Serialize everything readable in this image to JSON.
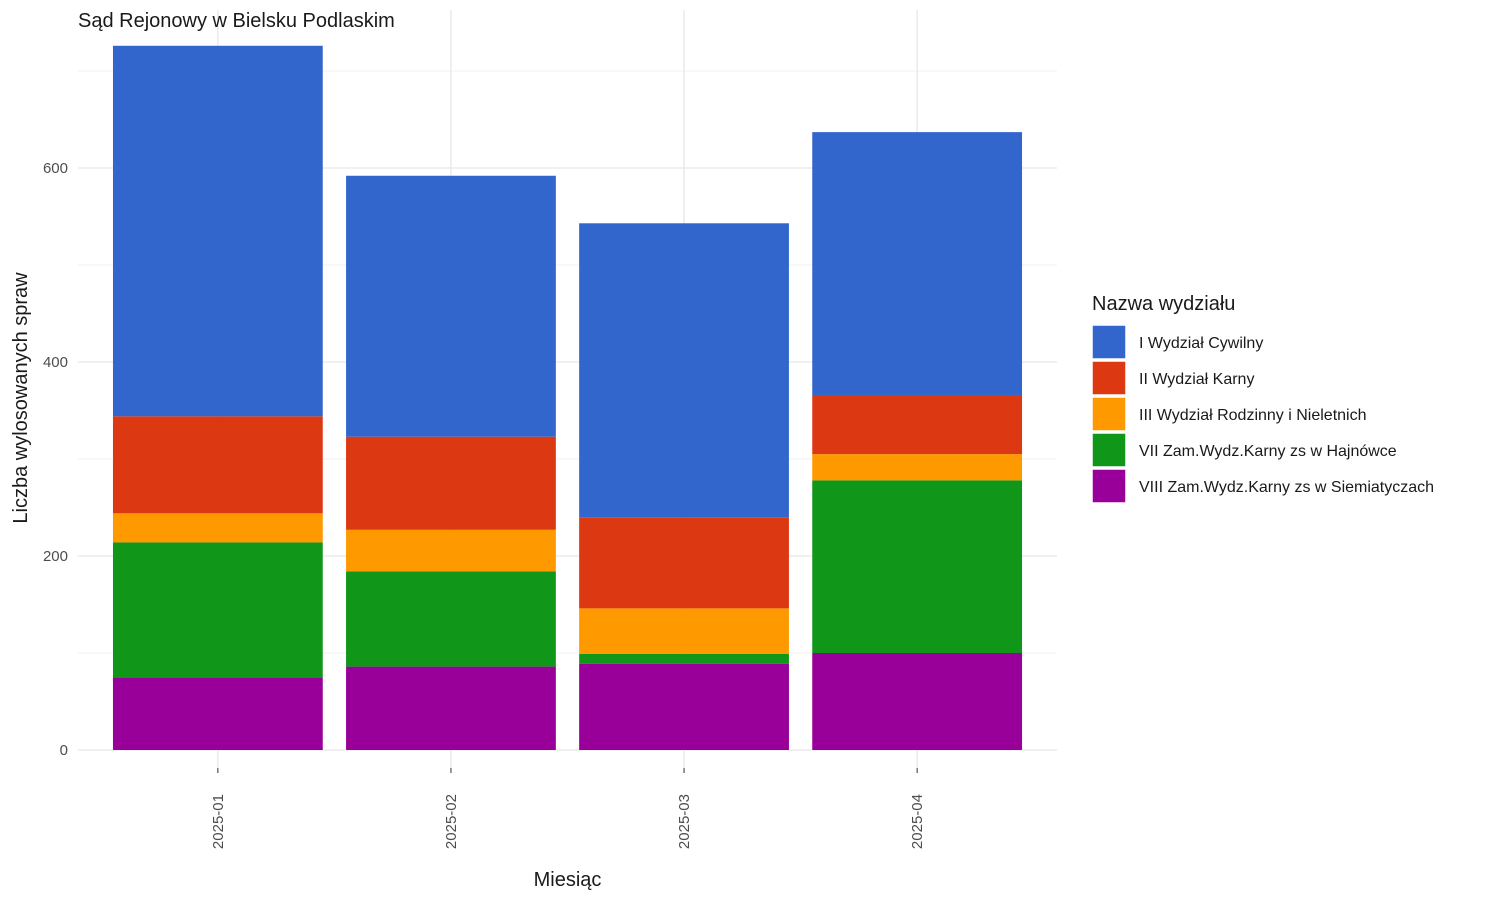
{
  "chart_data": {
    "type": "bar",
    "stacked": true,
    "title": "Sąd Rejonowy w Bielsku Podlaskim",
    "xlabel": "Miesiąc",
    "ylabel": "Liczba wylosowanych spraw",
    "categories": [
      "2025-01",
      "2025-02",
      "2025-03",
      "2025-04"
    ],
    "ylim": [
      0,
      730
    ],
    "yticks": [
      0,
      200,
      400,
      600
    ],
    "grid": true,
    "legend": {
      "title": "Nazwa wydziału",
      "position": "right"
    },
    "series": [
      {
        "name": "VIII Zam.Wydz.Karny zs w Siemiatyczach",
        "color": "#990099",
        "values": [
          75,
          86,
          89,
          100
        ]
      },
      {
        "name": "VII Zam.Wydz.Karny zs w Hajnówce",
        "color": "#109618",
        "values": [
          139,
          98,
          10,
          178
        ]
      },
      {
        "name": "III Wydział Rodzinny i Nieletnich",
        "color": "#FF9900",
        "values": [
          30,
          43,
          47,
          27
        ]
      },
      {
        "name": "II Wydział Karny",
        "color": "#DC3912",
        "values": [
          100,
          96,
          94,
          61
        ]
      },
      {
        "name": "I Wydział Cywilny",
        "color": "#3366CC",
        "values": [
          382,
          269,
          303,
          271
        ]
      }
    ],
    "legend_order": [
      "I Wydział Cywilny",
      "II Wydział Karny",
      "III Wydział Rodzinny i Nieletnich",
      "VII Zam.Wydz.Karny zs w Hajnówce",
      "VIII Zam.Wydz.Karny zs w Siemiatyczach"
    ]
  }
}
